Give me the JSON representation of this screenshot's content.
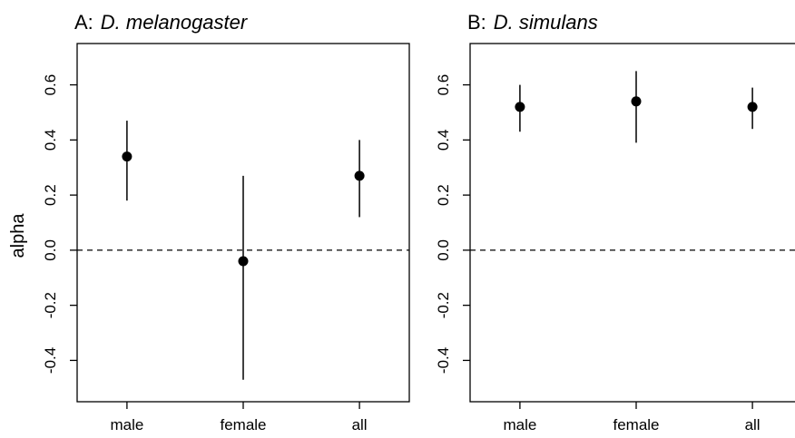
{
  "chart_data": [
    {
      "type": "scatter",
      "title_prefix": "A:",
      "title_species": "D. melanogaster",
      "ylabel": "alpha",
      "xlabel": "",
      "categories": [
        "male",
        "female",
        "all"
      ],
      "values": [
        0.34,
        -0.04,
        0.27
      ],
      "error_low": [
        0.18,
        -0.47,
        0.12
      ],
      "error_high": [
        0.47,
        0.27,
        0.4
      ],
      "ylim": [
        -0.55,
        0.75
      ],
      "yticks": [
        "-0.4",
        "-0.2",
        "0.0",
        "0.2",
        "0.4",
        "0.6"
      ],
      "reference_line": 0.0,
      "grid": false,
      "legend": "none"
    },
    {
      "type": "scatter",
      "title_prefix": "B:",
      "title_species": "D. simulans",
      "ylabel": "",
      "xlabel": "",
      "categories": [
        "male",
        "female",
        "all"
      ],
      "values": [
        0.52,
        0.54,
        0.52
      ],
      "error_low": [
        0.43,
        0.39,
        0.44
      ],
      "error_high": [
        0.6,
        0.65,
        0.59
      ],
      "ylim": [
        -0.55,
        0.75
      ],
      "yticks": [
        "-0.4",
        "-0.2",
        "0.0",
        "0.2",
        "0.4",
        "0.6"
      ],
      "reference_line": 0.0,
      "grid": false,
      "legend": "none"
    }
  ]
}
